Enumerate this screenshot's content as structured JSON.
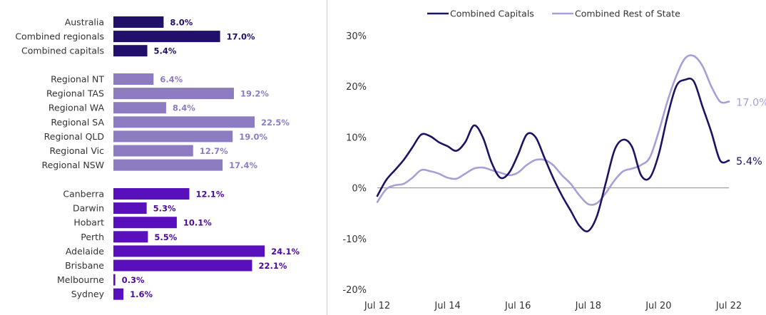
{
  "chart_data": [
    {
      "type": "bar",
      "orientation": "horizontal",
      "groups": [
        {
          "name": "summary",
          "color": "#220f6b",
          "labelColor": "#220f6b",
          "categories": [
            "Australia",
            "Combined regionals",
            "Combined capitals"
          ],
          "values": [
            8.0,
            17.0,
            5.4
          ],
          "labels": [
            "8.0%",
            "17.0%",
            "5.4%"
          ]
        },
        {
          "name": "regional",
          "color": "#8e7cc3",
          "labelColor": "#8e7cc3",
          "categories": [
            "Regional NT",
            "Regional TAS",
            "Regional WA",
            "Regional SA",
            "Regional QLD",
            "Regional Vic",
            "Regional NSW"
          ],
          "values": [
            6.4,
            19.2,
            8.4,
            22.5,
            19.0,
            12.7,
            17.4
          ],
          "labels": [
            "6.4%",
            "19.2%",
            "8.4%",
            "22.5%",
            "19.0%",
            "12.7%",
            "17.4%"
          ]
        },
        {
          "name": "capitals",
          "color": "#5a0fbd",
          "labelColor": "#4a0a9e",
          "categories": [
            "Canberra",
            "Darwin",
            "Hobart",
            "Perth",
            "Adelaide",
            "Brisbane",
            "Melbourne",
            "Sydney"
          ],
          "values": [
            12.1,
            5.3,
            10.1,
            5.5,
            24.1,
            22.1,
            0.3,
            1.6
          ],
          "labels": [
            "12.1%",
            "5.3%",
            "10.1%",
            "5.5%",
            "24.1%",
            "22.1%",
            "0.3%",
            "1.6%"
          ]
        }
      ]
    },
    {
      "type": "line",
      "xlim": [
        2012.5,
        2022.5
      ],
      "ylim": [
        -20,
        30
      ],
      "yticks": [
        -20,
        -10,
        0,
        10,
        20,
        30
      ],
      "ytick_labels": [
        "-20%",
        "-10%",
        "0%",
        "10%",
        "20%",
        "30%"
      ],
      "xticks": [
        2012.5,
        2014.5,
        2016.5,
        2018.5,
        2020.5,
        2022.5
      ],
      "xtick_labels": [
        "Jul 12",
        "Jul 14",
        "Jul 16",
        "Jul 18",
        "Jul 20",
        "Jul 22"
      ],
      "legend_position": "top",
      "series": [
        {
          "name": "Combined Capitals",
          "color": "#1b1464",
          "end_label": "5.4%",
          "x": [
            2012.5,
            2012.75,
            2013.0,
            2013.25,
            2013.5,
            2013.75,
            2014.0,
            2014.25,
            2014.5,
            2014.75,
            2015.0,
            2015.25,
            2015.5,
            2015.75,
            2016.0,
            2016.25,
            2016.5,
            2016.75,
            2017.0,
            2017.25,
            2017.5,
            2017.75,
            2018.0,
            2018.25,
            2018.5,
            2018.75,
            2019.0,
            2019.25,
            2019.5,
            2019.75,
            2020.0,
            2020.25,
            2020.5,
            2020.75,
            2021.0,
            2021.25,
            2021.5,
            2021.75,
            2022.0,
            2022.25,
            2022.5
          ],
          "y": [
            -1.6,
            1.5,
            3.5,
            5.5,
            8.0,
            10.5,
            10.2,
            9.0,
            8.2,
            7.3,
            9.0,
            12.3,
            10.0,
            5.0,
            2.0,
            3.0,
            6.5,
            10.5,
            10.0,
            6.0,
            2.0,
            -1.5,
            -4.5,
            -7.5,
            -8.5,
            -5.5,
            1.0,
            7.5,
            9.5,
            8.0,
            2.5,
            2.0,
            6.5,
            14.0,
            20.0,
            21.3,
            21.0,
            16.0,
            11.0,
            5.4,
            5.4
          ]
        },
        {
          "name": "Combined Rest of State",
          "color": "#a99fd6",
          "end_label": "17.0%",
          "x": [
            2012.5,
            2012.75,
            2013.0,
            2013.25,
            2013.5,
            2013.75,
            2014.0,
            2014.25,
            2014.5,
            2014.75,
            2015.0,
            2015.25,
            2015.5,
            2015.75,
            2016.0,
            2016.25,
            2016.5,
            2016.75,
            2017.0,
            2017.25,
            2017.5,
            2017.75,
            2018.0,
            2018.25,
            2018.5,
            2018.75,
            2019.0,
            2019.25,
            2019.5,
            2019.75,
            2020.0,
            2020.25,
            2020.5,
            2020.75,
            2021.0,
            2021.25,
            2021.5,
            2021.75,
            2022.0,
            2022.25,
            2022.5
          ],
          "y": [
            -2.8,
            -0.3,
            0.5,
            0.8,
            2.0,
            3.5,
            3.3,
            2.8,
            2.0,
            1.8,
            2.8,
            3.8,
            4.0,
            3.5,
            3.0,
            2.5,
            3.0,
            4.5,
            5.5,
            5.5,
            4.5,
            2.5,
            0.8,
            -1.5,
            -3.2,
            -3.0,
            -1.0,
            1.5,
            3.3,
            3.8,
            4.5,
            6.0,
            11.0,
            17.0,
            22.0,
            25.5,
            26.0,
            24.0,
            20.0,
            17.0,
            17.0
          ]
        }
      ]
    }
  ]
}
